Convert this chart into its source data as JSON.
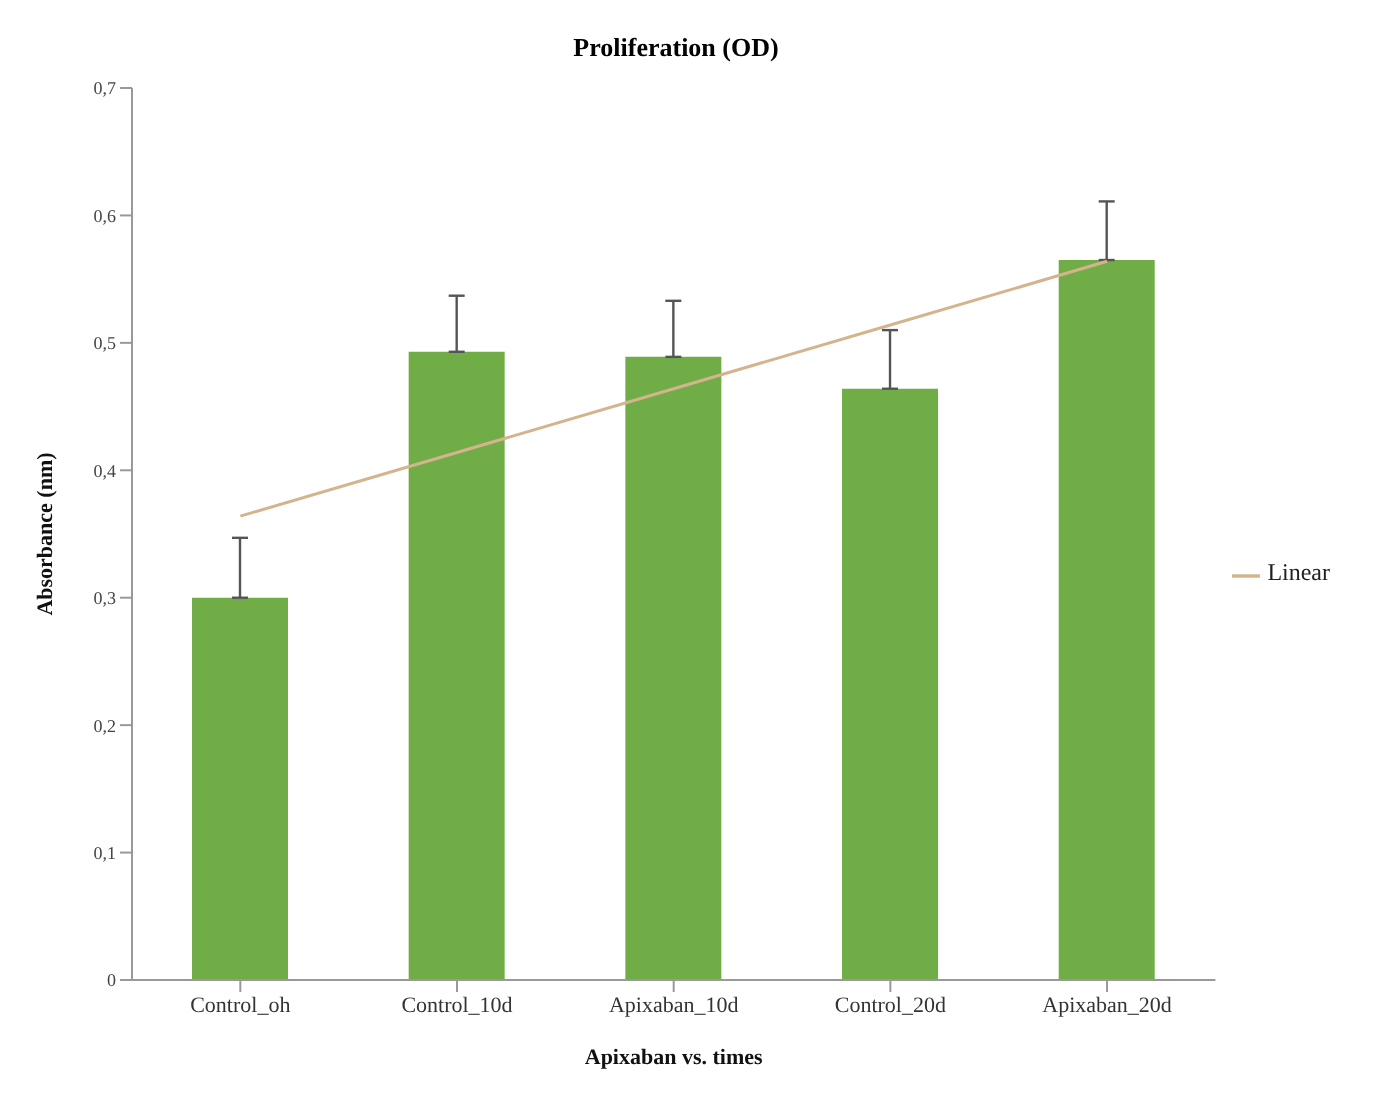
{
  "chart_data": {
    "type": "bar",
    "title": "Proliferation (OD)",
    "xlabel": "Apixaban vs. times",
    "ylabel": "Absorbance (nm)",
    "categories": [
      "Control_oh",
      "Control_10d",
      "Apixaban_10d",
      "Control_20d",
      "Apixaban_20d"
    ],
    "series": [
      {
        "color": "#70ad47",
        "values": [
          0.3,
          0.493,
          0.489,
          0.464,
          0.565
        ],
        "errors": [
          [
            0.3,
            0.347
          ],
          [
            0.493,
            0.537
          ],
          [
            0.489,
            0.533
          ],
          [
            0.464,
            0.51
          ],
          [
            0.565,
            0.611
          ]
        ]
      },
      {
        "type": "line",
        "name": "Linear",
        "color": "#d4b48c",
        "values": [
          0.364,
          0.414,
          0.464,
          0.514,
          0.564
        ]
      }
    ],
    "ylim": [
      0,
      0.7
    ],
    "yticks": [
      {
        "value": 0,
        "label": "0"
      },
      {
        "value": 0.1,
        "label": "0,1"
      },
      {
        "value": 0.2,
        "label": "0,2"
      },
      {
        "value": 0.3,
        "label": "0,3"
      },
      {
        "value": 0.4,
        "label": "0,4"
      },
      {
        "value": 0.5,
        "label": "0,5"
      },
      {
        "value": 0.6,
        "label": "0,6"
      },
      {
        "value": 0.7,
        "label": "0,7"
      }
    ],
    "grid": false,
    "legend": "right",
    "marker": "none",
    "line_style": "solid"
  }
}
